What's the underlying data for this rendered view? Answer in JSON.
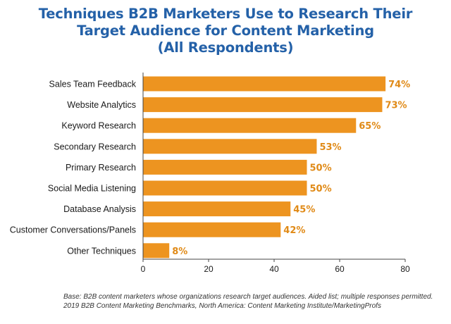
{
  "colors": {
    "title": "#2461a8",
    "bar": "#ed9420",
    "value_label": "#e08a17",
    "axis": "#444444"
  },
  "chart_data": {
    "type": "bar",
    "orientation": "horizontal",
    "title": [
      "Techniques B2B Marketers Use to Research Their",
      "Target Audience for Content Marketing",
      "(All Respondents)"
    ],
    "categories": [
      "Sales Team Feedback",
      "Website Analytics",
      "Keyword Research",
      "Secondary Research",
      "Primary Research",
      "Social Media Listening",
      "Database Analysis",
      "Customer Conversations/Panels",
      "Other Techniques"
    ],
    "values": [
      74,
      73,
      65,
      53,
      50,
      50,
      45,
      42,
      8
    ],
    "value_labels": [
      "74%",
      "73%",
      "65%",
      "53%",
      "50%",
      "50%",
      "45%",
      "42%",
      "8%"
    ],
    "xlim": [
      0,
      80
    ],
    "xticks": [
      0,
      20,
      40,
      60,
      80
    ],
    "grid": false,
    "xlabel": "",
    "ylabel": ""
  },
  "footnotes": {
    "base": "Base: B2B content marketers whose organizations research target audiences. Aided list; multiple responses permitted.",
    "source": "2019 B2B Content Marketing Benchmarks, North America: Content Marketing Institute/MarketingProfs"
  }
}
